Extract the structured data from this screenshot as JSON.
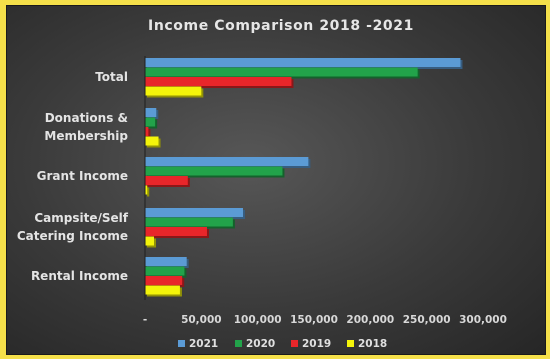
{
  "chart_data": {
    "type": "bar",
    "orientation": "horizontal",
    "title": "Income Comparison 2018 -2021",
    "xlabel": "",
    "ylabel": "",
    "xlim": [
      0,
      300000
    ],
    "x_ticks": [
      0,
      50000,
      100000,
      150000,
      200000,
      250000,
      300000
    ],
    "x_tick_labels": [
      "-",
      "50,000",
      "100,000",
      "150,000",
      "200,000",
      "250,000",
      "300,000"
    ],
    "categories": [
      [
        "Total"
      ],
      [
        "Donations &",
        "Membership"
      ],
      [
        "Grant Income"
      ],
      [
        "Campsite/Self",
        "Catering  Income"
      ],
      [
        "Rental Income"
      ]
    ],
    "series": [
      {
        "name": "2021",
        "color": "#5b9bd5",
        "values": [
          280000,
          10000,
          145000,
          87000,
          37000
        ]
      },
      {
        "name": "2020",
        "color": "#22a34a",
        "values": [
          242000,
          9000,
          122000,
          78000,
          35000
        ]
      },
      {
        "name": "2019",
        "color": "#e8262a",
        "values": [
          130000,
          3000,
          38000,
          55000,
          33000
        ]
      },
      {
        "name": "2018",
        "color": "#f4f40a",
        "values": [
          50000,
          12000,
          2000,
          8000,
          31000
        ]
      }
    ],
    "legend": {
      "position": "bottom"
    },
    "grid": false
  }
}
